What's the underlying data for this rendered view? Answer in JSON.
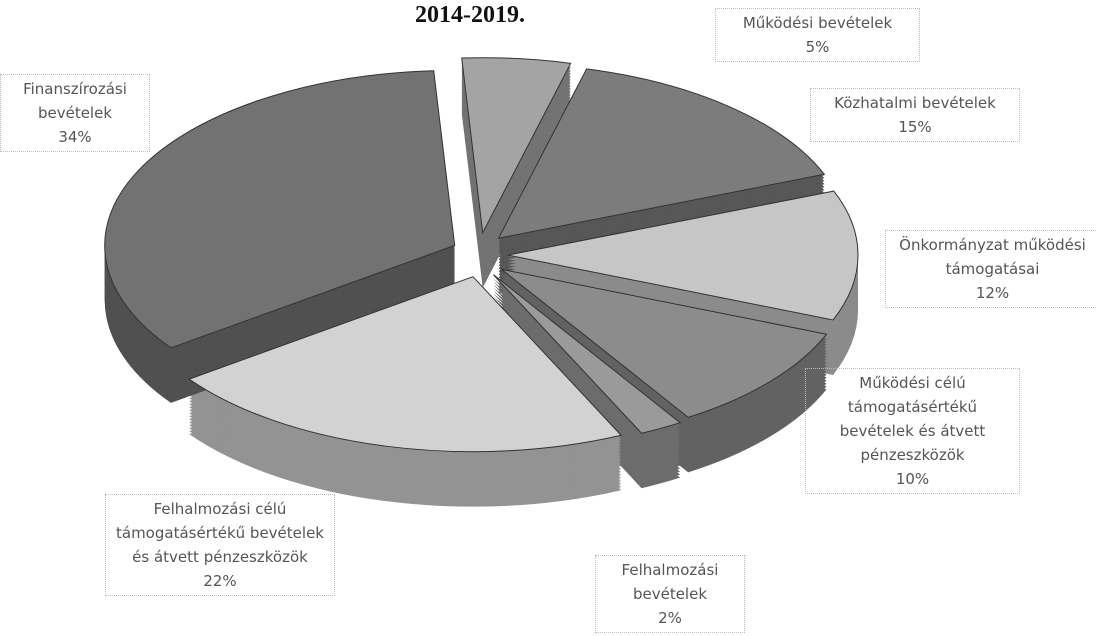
{
  "chart_data": {
    "type": "pie",
    "title": "2014-2019.",
    "categories": [
      "Működési bevételek",
      "Közhatalmi bevételek",
      "Önkormányzat működési támogatásai",
      "Működési célú támogatásértékű bevételek és átvett pénzeszközök",
      "Felhalmozási bevételek",
      "Felhalmozási célú támogatásértékű bevételek és átvett pénzeszközök",
      "Finanszírozási bevételek"
    ],
    "values": [
      5,
      15,
      12,
      10,
      2,
      22,
      34
    ],
    "value_labels": [
      "5%",
      "15%",
      "12%",
      "10%",
      "2%",
      "22%",
      "34%"
    ],
    "colors": [
      "#a4a4a4",
      "#7c7c7c",
      "#c6c6c6",
      "#8c8c8c",
      "#9a9a9a",
      "#d2d2d2",
      "#727272"
    ]
  }
}
